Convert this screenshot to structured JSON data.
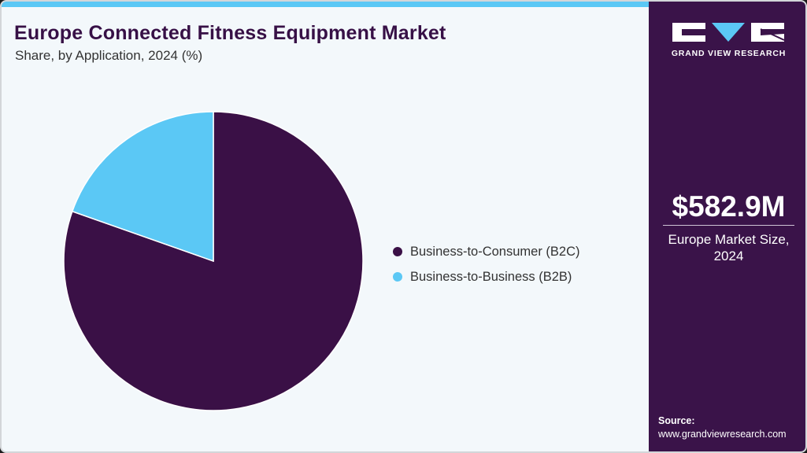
{
  "header": {
    "title": "Europe Connected Fitness Equipment Market",
    "subtitle": "Share, by Application, 2024 (%)"
  },
  "colors": {
    "b2c": "#3a1046",
    "b2b": "#5bc8f5",
    "accent_bar": "#5bc8f5",
    "side_panel": "#3a1349",
    "background": "#f3f8fb"
  },
  "legend": {
    "items": [
      {
        "label": "Business-to-Consumer (B2C)",
        "color": "#3a1046"
      },
      {
        "label": "Business-to-Business (B2B)",
        "color": "#5bc8f5"
      }
    ]
  },
  "side_panel": {
    "brand": "GRAND VIEW RESEARCH",
    "market_value": "$582.9M",
    "market_label_line1": "Europe Market Size,",
    "market_label_line2": "2024",
    "source_label": "Source:",
    "source_url": "www.grandviewresearch.com"
  },
  "chart_data": {
    "type": "pie",
    "title": "Europe Connected Fitness Equipment Market",
    "subtitle": "Share, by Application, 2024 (%)",
    "categories": [
      "Business-to-Consumer (B2C)",
      "Business-to-Business (B2B)"
    ],
    "values": [
      80.4,
      19.6
    ],
    "colors": [
      "#3a1046",
      "#5bc8f5"
    ],
    "start_angle": "12 o'clock",
    "direction": "clockwise (B2C), B2B occupying upper-left",
    "legend_position": "right",
    "data_labels": false
  }
}
